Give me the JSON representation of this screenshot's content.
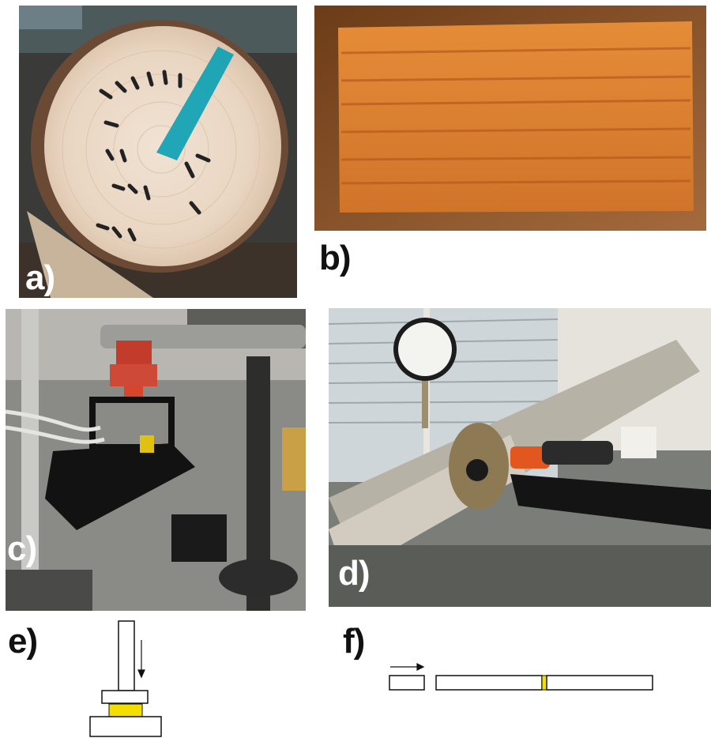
{
  "panels": {
    "a": {
      "label": "a)",
      "icon": "log-cross-section-photo"
    },
    "b": {
      "label": "b)",
      "icon": "wood-block-photo"
    },
    "c": {
      "label": "c)",
      "icon": "compression-test-rig-photo"
    },
    "d": {
      "label": "d)",
      "icon": "pressure-tube-setup-photo"
    },
    "e": {
      "label": "e)",
      "icon": "compression-schematic"
    },
    "f": {
      "label": "f)",
      "icon": "bar-impact-schematic"
    }
  },
  "colors": {
    "specimen": "#f2df00",
    "stroke": "#111111",
    "paint_mark": "#0aa0b4",
    "wood_block": "#d8792c"
  }
}
